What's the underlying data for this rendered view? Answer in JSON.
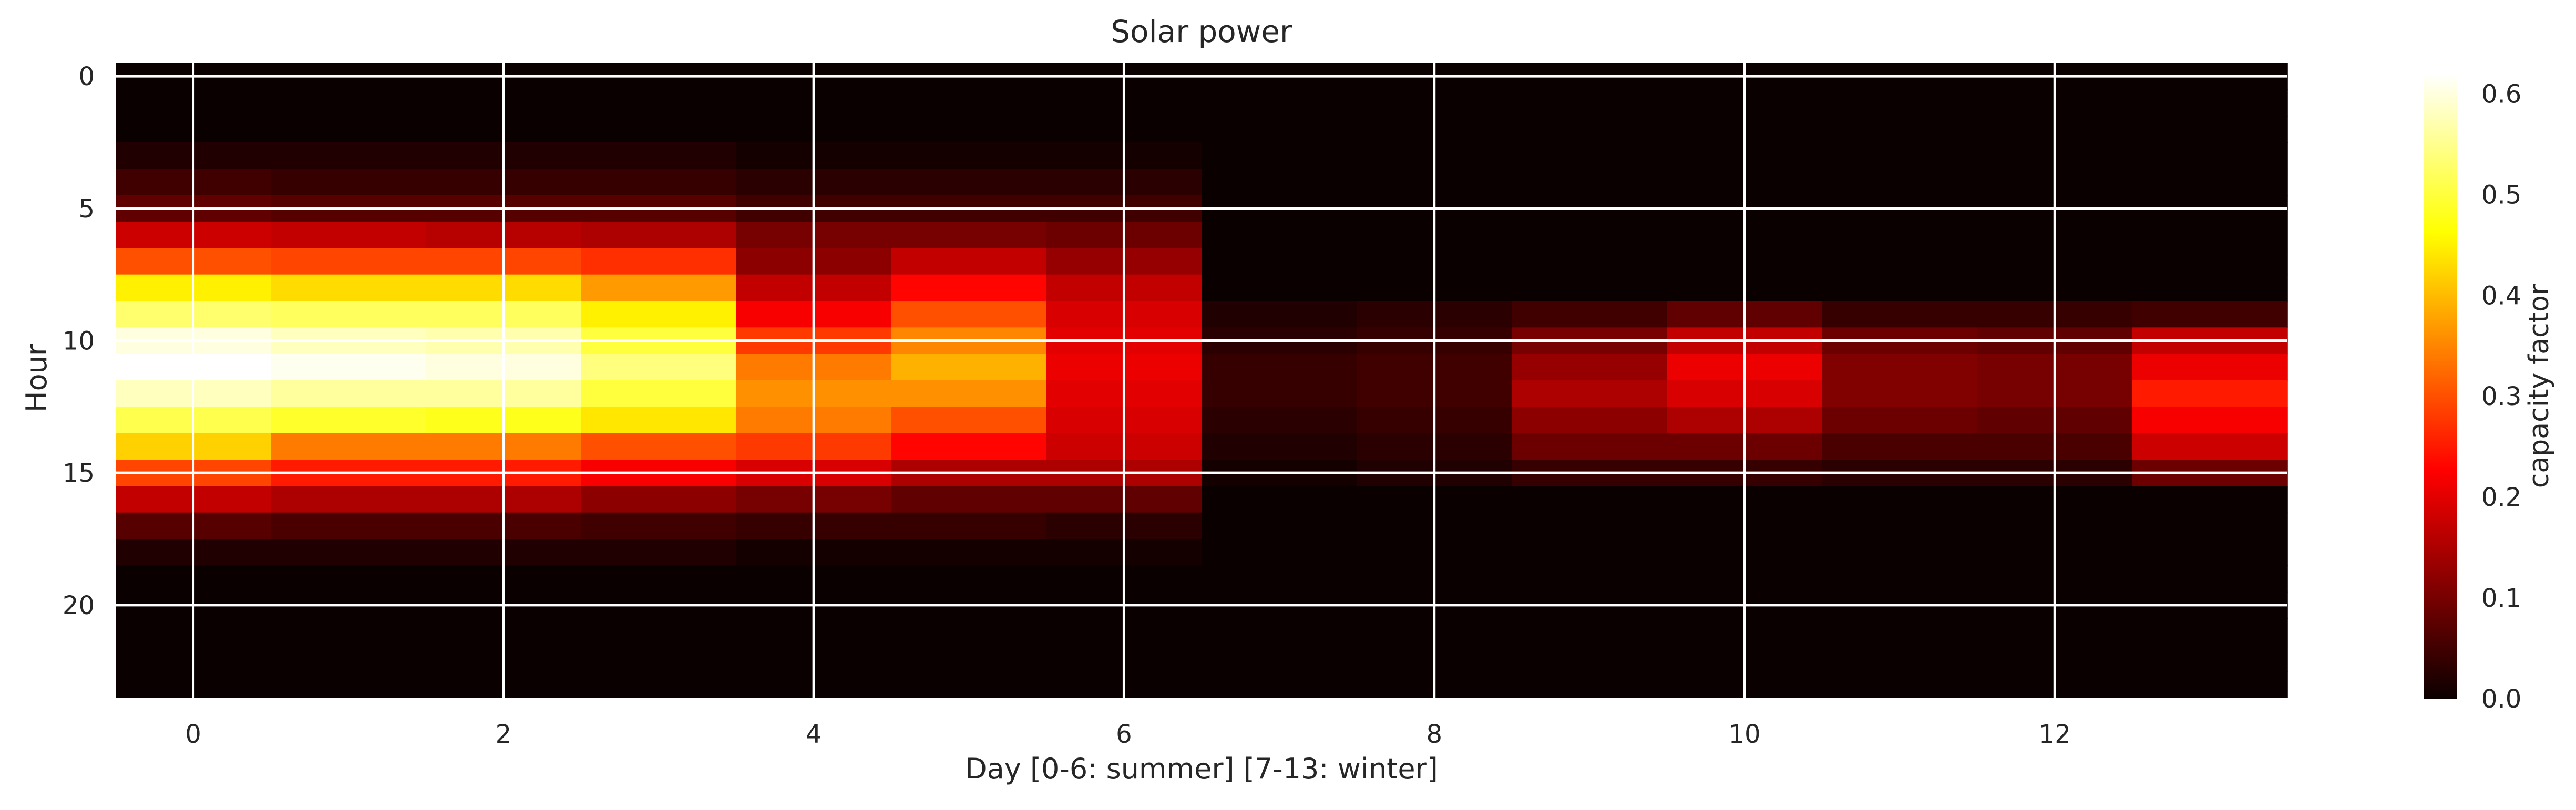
{
  "chart_data": {
    "type": "heatmap",
    "title": "Solar power",
    "xlabel": "Day [0-6: summer] [7-13: winter]",
    "ylabel": "Hour",
    "colorbar_label": "capacity factor",
    "colormap": "hot",
    "vmin": 0.0,
    "vmax": 0.62,
    "grid": true,
    "x_ticks": [
      0,
      2,
      4,
      6,
      8,
      10,
      12
    ],
    "y_ticks": [
      0,
      5,
      10,
      15,
      20
    ],
    "colorbar_ticks": [
      0.0,
      0.1,
      0.2,
      0.3,
      0.4,
      0.5,
      0.6
    ],
    "x": [
      0,
      1,
      2,
      3,
      4,
      5,
      6,
      7,
      8,
      9,
      10,
      11,
      12,
      13
    ],
    "y": [
      0,
      1,
      2,
      3,
      4,
      5,
      6,
      7,
      8,
      9,
      10,
      11,
      12,
      13,
      14,
      15,
      16,
      17,
      18,
      19,
      20,
      21,
      22,
      23
    ],
    "values": [
      [
        0,
        0,
        0,
        0,
        0,
        0,
        0,
        0,
        0,
        0,
        0,
        0,
        0,
        0
      ],
      [
        0,
        0,
        0,
        0,
        0,
        0,
        0,
        0,
        0,
        0,
        0,
        0,
        0,
        0
      ],
      [
        0,
        0,
        0,
        0,
        0,
        0,
        0,
        0,
        0,
        0,
        0,
        0,
        0,
        0
      ],
      [
        0.02,
        0.02,
        0.02,
        0.02,
        0.01,
        0.01,
        0.01,
        0,
        0,
        0,
        0,
        0,
        0,
        0
      ],
      [
        0.05,
        0.04,
        0.04,
        0.04,
        0.03,
        0.03,
        0.03,
        0,
        0,
        0,
        0,
        0,
        0,
        0
      ],
      [
        0.08,
        0.07,
        0.07,
        0.07,
        0.05,
        0.05,
        0.05,
        0,
        0,
        0,
        0,
        0,
        0,
        0
      ],
      [
        0.18,
        0.17,
        0.16,
        0.15,
        0.1,
        0.1,
        0.09,
        0,
        0,
        0,
        0,
        0,
        0,
        0
      ],
      [
        0.3,
        0.29,
        0.29,
        0.27,
        0.12,
        0.17,
        0.13,
        0,
        0,
        0,
        0,
        0,
        0,
        0
      ],
      [
        0.45,
        0.43,
        0.43,
        0.37,
        0.17,
        0.23,
        0.17,
        0,
        0,
        0,
        0,
        0,
        0,
        0
      ],
      [
        0.53,
        0.52,
        0.52,
        0.45,
        0.22,
        0.3,
        0.19,
        0.02,
        0.03,
        0.05,
        0.08,
        0.04,
        0.04,
        0.05
      ],
      [
        0.6,
        0.58,
        0.57,
        0.5,
        0.28,
        0.35,
        0.2,
        0.03,
        0.04,
        0.1,
        0.17,
        0.09,
        0.08,
        0.17
      ],
      [
        0.62,
        0.61,
        0.6,
        0.54,
        0.34,
        0.39,
        0.21,
        0.04,
        0.05,
        0.13,
        0.21,
        0.11,
        0.1,
        0.21
      ],
      [
        0.58,
        0.56,
        0.56,
        0.5,
        0.36,
        0.36,
        0.2,
        0.04,
        0.05,
        0.15,
        0.19,
        0.11,
        0.1,
        0.25
      ],
      [
        0.51,
        0.49,
        0.48,
        0.44,
        0.34,
        0.3,
        0.19,
        0.03,
        0.04,
        0.12,
        0.15,
        0.09,
        0.08,
        0.22
      ],
      [
        0.42,
        0.34,
        0.34,
        0.3,
        0.28,
        0.23,
        0.18,
        0.02,
        0.03,
        0.09,
        0.09,
        0.06,
        0.06,
        0.18
      ],
      [
        0.29,
        0.25,
        0.25,
        0.22,
        0.19,
        0.15,
        0.15,
        0.01,
        0.02,
        0.04,
        0.04,
        0.03,
        0.03,
        0.09
      ],
      [
        0.17,
        0.15,
        0.15,
        0.12,
        0.1,
        0.08,
        0.08,
        0,
        0,
        0,
        0,
        0,
        0,
        0
      ],
      [
        0.07,
        0.06,
        0.06,
        0.05,
        0.04,
        0.04,
        0.03,
        0,
        0,
        0,
        0,
        0,
        0,
        0
      ],
      [
        0.02,
        0.02,
        0.02,
        0.02,
        0.01,
        0.01,
        0.01,
        0,
        0,
        0,
        0,
        0,
        0,
        0
      ],
      [
        0,
        0,
        0,
        0,
        0,
        0,
        0,
        0,
        0,
        0,
        0,
        0,
        0,
        0
      ],
      [
        0,
        0,
        0,
        0,
        0,
        0,
        0,
        0,
        0,
        0,
        0,
        0,
        0,
        0
      ],
      [
        0,
        0,
        0,
        0,
        0,
        0,
        0,
        0,
        0,
        0,
        0,
        0,
        0,
        0
      ],
      [
        0,
        0,
        0,
        0,
        0,
        0,
        0,
        0,
        0,
        0,
        0,
        0,
        0,
        0
      ],
      [
        0,
        0,
        0,
        0,
        0,
        0,
        0,
        0,
        0,
        0,
        0,
        0,
        0,
        0
      ]
    ]
  }
}
